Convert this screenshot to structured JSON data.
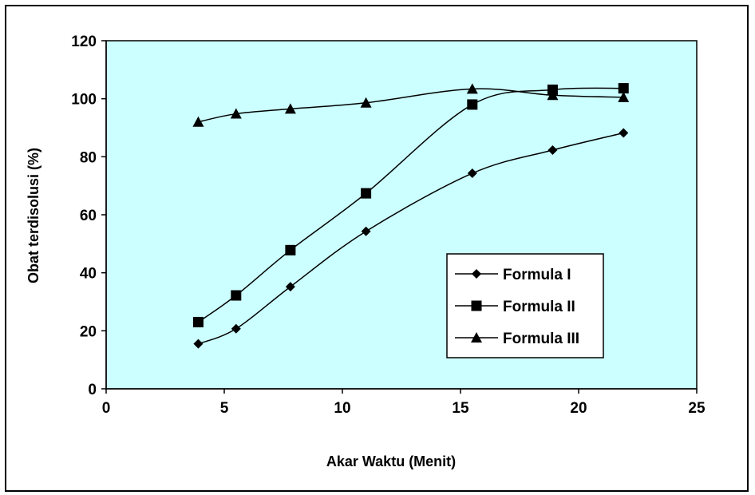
{
  "chart_data": {
    "type": "line",
    "title": "",
    "xlabel": "Akar Waktu (Menit)",
    "ylabel": "Obat terdisolusi (%)",
    "xlim": [
      0,
      25
    ],
    "ylim": [
      0,
      120
    ],
    "xticks": [
      0,
      5,
      10,
      15,
      20,
      25
    ],
    "yticks": [
      0,
      20,
      40,
      60,
      80,
      100,
      120
    ],
    "grid": false,
    "legend_position": "lower-right",
    "plot_background": "#ccffff",
    "line_color": "#000000",
    "series": [
      {
        "name": "Formula I",
        "marker": "diamond",
        "x": [
          3.9,
          5.5,
          7.8,
          11.0,
          15.5,
          18.9,
          21.9
        ],
        "y": [
          15.5,
          20.7,
          35.2,
          54.3,
          74.3,
          82.3,
          88.2
        ]
      },
      {
        "name": "Formula II",
        "marker": "square",
        "x": [
          3.9,
          5.5,
          7.8,
          11.0,
          15.5,
          18.9,
          21.9
        ],
        "y": [
          23.0,
          32.2,
          47.8,
          67.4,
          98.0,
          103.1,
          103.6
        ]
      },
      {
        "name": "Formula III",
        "marker": "triangle",
        "x": [
          3.9,
          5.5,
          7.8,
          11.0,
          15.5,
          18.9,
          21.9
        ],
        "y": [
          92.0,
          94.8,
          96.5,
          98.6,
          103.4,
          101.2,
          100.5
        ]
      }
    ]
  }
}
